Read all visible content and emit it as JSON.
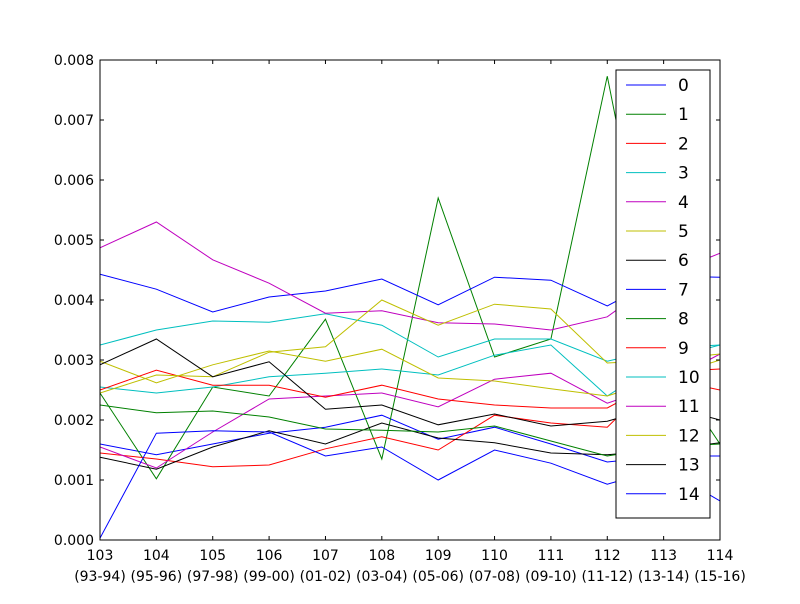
{
  "chart_data": {
    "type": "line",
    "title": "",
    "xlabel": "",
    "ylabel": "",
    "x": [
      103,
      104,
      105,
      106,
      107,
      108,
      109,
      110,
      111,
      112,
      113,
      114
    ],
    "xtick_labels": [
      {
        "top": "103",
        "bottom": "(93-94)"
      },
      {
        "top": "104",
        "bottom": "(95-96)"
      },
      {
        "top": "105",
        "bottom": "(97-98)"
      },
      {
        "top": "106",
        "bottom": "(99-00)"
      },
      {
        "top": "107",
        "bottom": "(01-02)"
      },
      {
        "top": "108",
        "bottom": "(03-04)"
      },
      {
        "top": "109",
        "bottom": "(05-06)"
      },
      {
        "top": "110",
        "bottom": "(07-08)"
      },
      {
        "top": "111",
        "bottom": "(09-10)"
      },
      {
        "top": "112",
        "bottom": "(11-12)"
      },
      {
        "top": "113",
        "bottom": "(13-14)"
      },
      {
        "top": "114",
        "bottom": "(15-16)"
      }
    ],
    "xlim": [
      103,
      114
    ],
    "ylim": [
      0,
      0.008
    ],
    "yticks": [
      0,
      0.001,
      0.002,
      0.003,
      0.004,
      0.005,
      0.006,
      0.007,
      0.008
    ],
    "ytick_labels": [
      "0.000",
      "0.001",
      "0.002",
      "0.003",
      "0.004",
      "0.005",
      "0.006",
      "0.007",
      "0.008"
    ],
    "grid": false,
    "legend_position": "right",
    "series": [
      {
        "name": "0",
        "color": "#0000ff",
        "values": [
          0.0016,
          0.00142,
          0.0016,
          0.00178,
          0.00188,
          0.00208,
          0.00168,
          0.00188,
          0.0016,
          0.0013,
          0.0014,
          0.0014
        ]
      },
      {
        "name": "1",
        "color": "#008000",
        "values": [
          0.00245,
          0.00102,
          0.00255,
          0.0024,
          0.00368,
          0.00135,
          0.0057,
          0.00305,
          0.00335,
          0.00773,
          0.003,
          0.0016
        ]
      },
      {
        "name": "2",
        "color": "#ff0000",
        "values": [
          0.00145,
          0.00135,
          0.00122,
          0.00125,
          0.00152,
          0.00172,
          0.0015,
          0.00208,
          0.00195,
          0.00188,
          0.0028,
          0.00285
        ]
      },
      {
        "name": "3",
        "color": "#00bfbf",
        "values": [
          0.00255,
          0.00245,
          0.00255,
          0.00272,
          0.00278,
          0.00285,
          0.00275,
          0.00308,
          0.00325,
          0.0024,
          0.003,
          0.00325
        ]
      },
      {
        "name": "4",
        "color": "#bf00bf",
        "values": [
          0.00155,
          0.0012,
          0.0018,
          0.00235,
          0.0024,
          0.00245,
          0.00222,
          0.00268,
          0.00278,
          0.00228,
          0.0026,
          0.0031
        ]
      },
      {
        "name": "5",
        "color": "#bfbf00",
        "values": [
          0.00298,
          0.00262,
          0.00292,
          0.00315,
          0.00298,
          0.00318,
          0.0027,
          0.00265,
          0.00252,
          0.0024,
          0.0027,
          0.003
        ]
      },
      {
        "name": "6",
        "color": "#000000",
        "values": [
          0.00138,
          0.00118,
          0.00155,
          0.00182,
          0.0016,
          0.00195,
          0.0017,
          0.00162,
          0.00145,
          0.00142,
          0.0015,
          0.00162
        ]
      },
      {
        "name": "7",
        "color": "#0000ff",
        "values": [
          0.00443,
          0.00418,
          0.0038,
          0.00405,
          0.00415,
          0.00435,
          0.00392,
          0.00438,
          0.00433,
          0.0039,
          0.0044,
          0.00438
        ]
      },
      {
        "name": "8",
        "color": "#008000",
        "values": [
          0.00225,
          0.00212,
          0.00215,
          0.00205,
          0.00185,
          0.00183,
          0.0018,
          0.0019,
          0.00165,
          0.0014,
          0.00155,
          0.0016
        ]
      },
      {
        "name": "9",
        "color": "#ff0000",
        "values": [
          0.0025,
          0.00283,
          0.00258,
          0.00258,
          0.00238,
          0.00258,
          0.00235,
          0.00225,
          0.0022,
          0.0022,
          0.0027,
          0.0025
        ]
      },
      {
        "name": "10",
        "color": "#00bfbf",
        "values": [
          0.00325,
          0.0035,
          0.00365,
          0.00363,
          0.00377,
          0.00358,
          0.00305,
          0.00335,
          0.00335,
          0.00298,
          0.0032,
          0.00325
        ]
      },
      {
        "name": "11",
        "color": "#bf00bf",
        "values": [
          0.00487,
          0.0053,
          0.00467,
          0.00428,
          0.00378,
          0.00382,
          0.00362,
          0.0036,
          0.0035,
          0.00372,
          0.0044,
          0.00478
        ]
      },
      {
        "name": "12",
        "color": "#bfbf00",
        "values": [
          0.00245,
          0.00275,
          0.00272,
          0.00313,
          0.00322,
          0.004,
          0.00358,
          0.00393,
          0.00385,
          0.00295,
          0.003,
          0.0031
        ]
      },
      {
        "name": "13",
        "color": "#000000",
        "values": [
          0.00292,
          0.00335,
          0.00272,
          0.00297,
          0.00218,
          0.00225,
          0.00192,
          0.0021,
          0.0019,
          0.00198,
          0.00225,
          0.002
        ]
      },
      {
        "name": "14",
        "color": "#0000ff",
        "values": [
          3e-05,
          0.00178,
          0.00182,
          0.0018,
          0.0014,
          0.00155,
          0.001,
          0.0015,
          0.00128,
          0.00093,
          0.0012,
          0.00065
        ]
      }
    ]
  }
}
